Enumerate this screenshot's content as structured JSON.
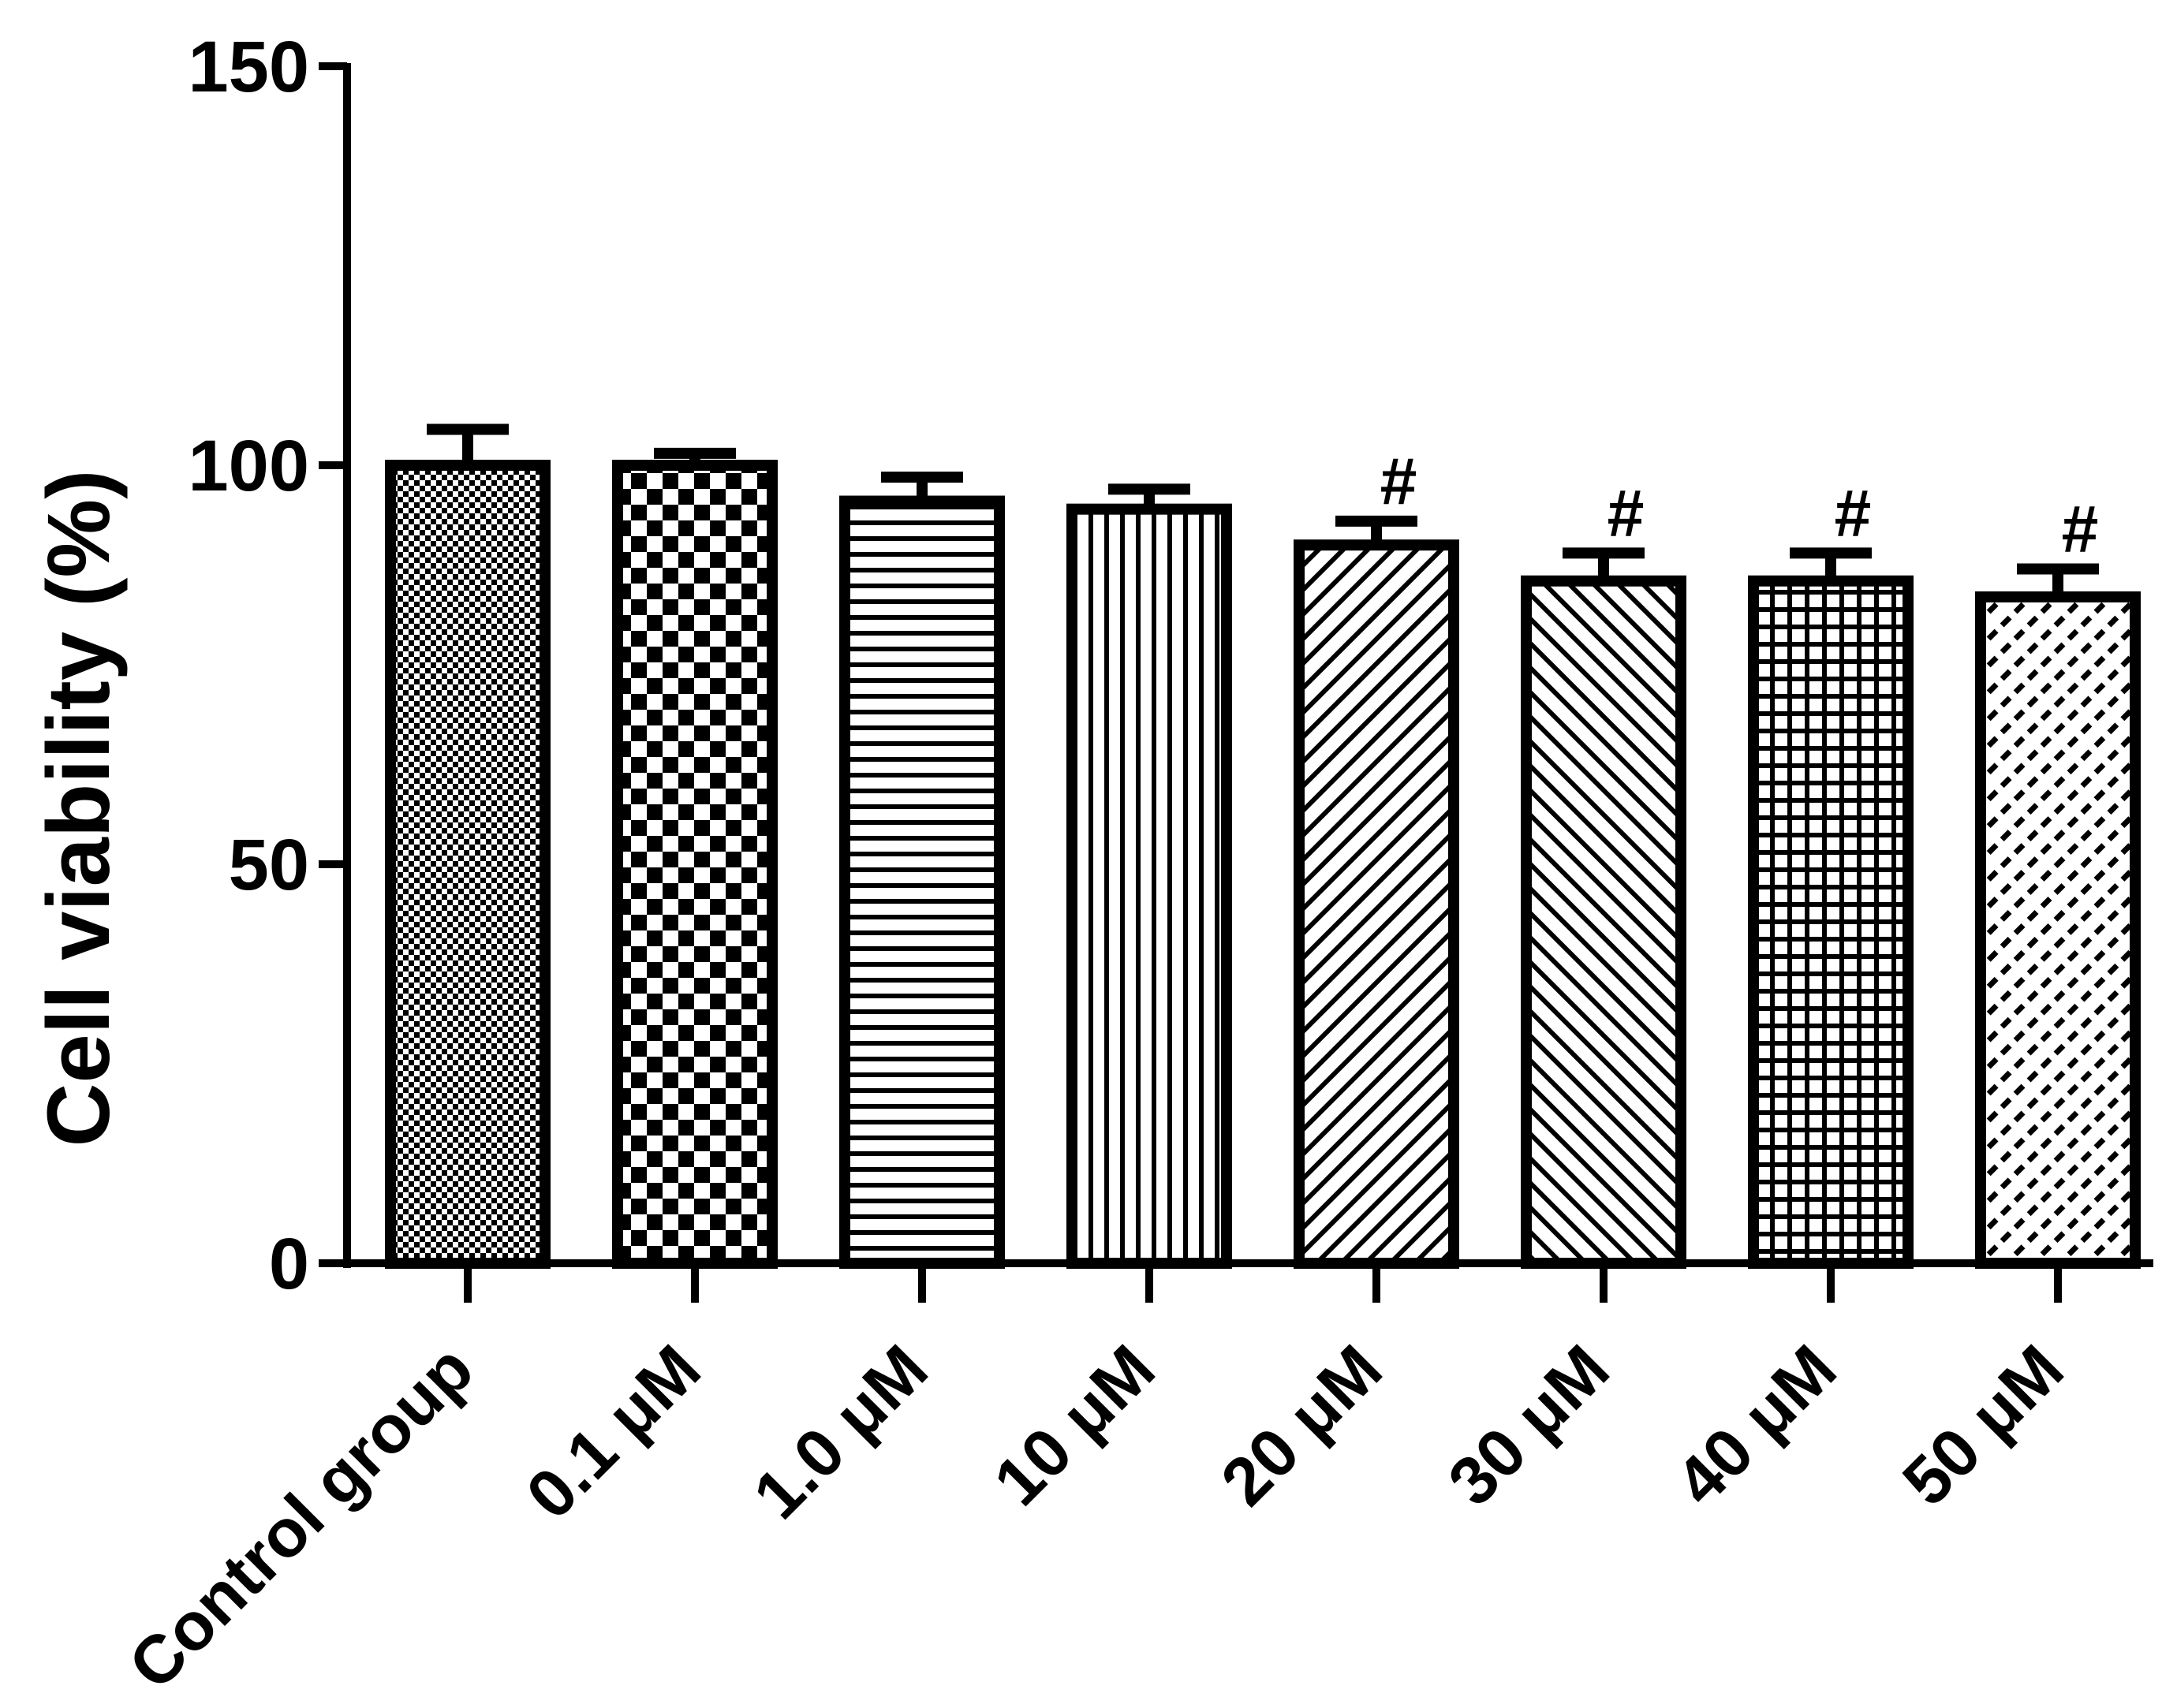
{
  "chart_data": {
    "type": "bar",
    "title": "",
    "xlabel": "",
    "ylabel": "Cell viability (%)",
    "ylim": [
      0,
      150
    ],
    "yticks": [
      0,
      50,
      100,
      150
    ],
    "grid": false,
    "legend": "none",
    "categories": [
      "Control group",
      "0.1 μM",
      "1.0 μM",
      "10 μM",
      "20 μM",
      "30 μM",
      "40 μM",
      "50 μM"
    ],
    "series": [
      {
        "values": [
          100,
          100,
          95.5,
          94.5,
          90,
          85.5,
          85.5,
          83.5
        ],
        "errors": [
          4.5,
          1.5,
          3.0,
          2.5,
          3.0,
          3.5,
          3.5,
          3.5
        ],
        "annotations": [
          "",
          "",
          "",
          "",
          "#",
          "#",
          "#",
          "#"
        ],
        "patterns": [
          "fine-dots",
          "checker",
          "horizontal-lines",
          "vertical-lines",
          "diagonal-right",
          "diagonal-left",
          "grid",
          "diagonal-dashed"
        ]
      }
    ],
    "colors": {
      "stroke": "#000000",
      "fill": "#ffffff"
    }
  }
}
